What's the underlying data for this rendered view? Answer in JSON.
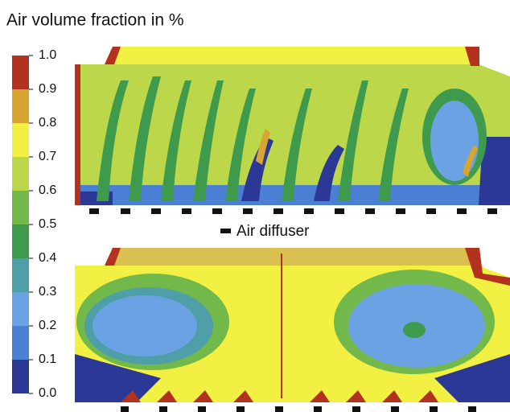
{
  "chart_data": {
    "type": "contour",
    "title": "Air volume fraction in %",
    "annotation": "Air diffuser",
    "colorbar": {
      "lim": [
        0,
        1
      ],
      "ticks": [
        {
          "value": 0,
          "label": "0.0"
        },
        0.1,
        0.2,
        0.3,
        0.4,
        0.5,
        0.6,
        0.7,
        0.8,
        0.9,
        {
          "value": 1,
          "label": "1.0"
        }
      ],
      "colors": [
        "#2b3896",
        "#4a7fd4",
        "#6aa2e4",
        "#4e9fa8",
        "#3e9a4c",
        "#72b84a",
        "#bcd84a",
        "#f2f043",
        "#d9a532",
        "#b3321f"
      ]
    }
  }
}
